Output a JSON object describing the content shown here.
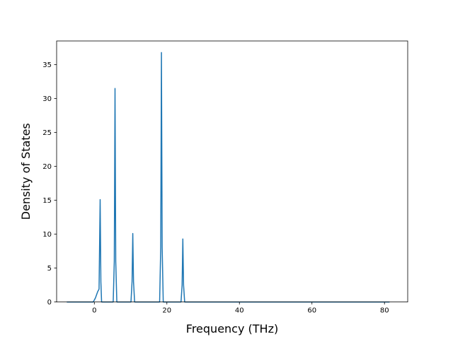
{
  "chart_data": {
    "type": "line",
    "title": "",
    "xlabel": "Frequency (THz)",
    "ylabel": "Density of States",
    "xlim": [
      -10.4,
      86.4
    ],
    "ylim": [
      0,
      38.5
    ],
    "xticks": [
      0,
      20,
      40,
      60,
      80
    ],
    "yticks": [
      0,
      5,
      10,
      15,
      20,
      25,
      30,
      35
    ],
    "grid": false,
    "legend": "none",
    "series": [
      {
        "color": "#1f77b4",
        "x": [
          -7.6,
          -0.3,
          0.3,
          0.9,
          1.3,
          1.6,
          1.8,
          2.0,
          2.4,
          5.2,
          5.5,
          5.7,
          5.9,
          6.2,
          10.1,
          10.4,
          10.6,
          10.8,
          11.1,
          18.0,
          18.3,
          18.5,
          18.7,
          19.0,
          23.9,
          24.2,
          24.4,
          24.6,
          24.9,
          81.4
        ],
        "values": [
          0,
          0,
          0.6,
          1.5,
          1.9,
          15.1,
          3.0,
          0,
          0,
          0,
          6.0,
          31.5,
          6.0,
          0,
          0,
          3.0,
          10.1,
          3.0,
          0,
          0,
          8.0,
          36.8,
          8.0,
          0,
          0,
          2.5,
          9.3,
          2.5,
          0,
          0
        ]
      }
    ]
  }
}
